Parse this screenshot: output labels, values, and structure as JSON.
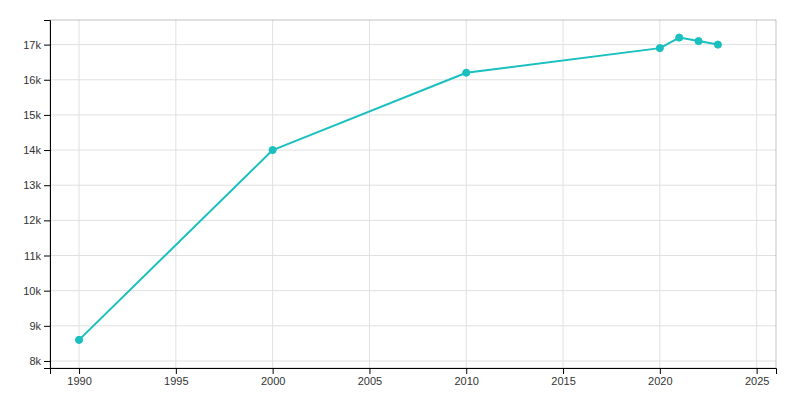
{
  "chart_data": {
    "type": "line",
    "x": [
      1990,
      2000,
      2010,
      2020,
      2021,
      2022,
      2023
    ],
    "values": [
      8600,
      14000,
      16200,
      16900,
      17200,
      17100,
      17000
    ],
    "color": "#1abfbf",
    "marker": "circle",
    "xlim": [
      1988.5,
      2026
    ],
    "ylim": [
      7800,
      17700
    ],
    "xticks": [
      1990,
      1995,
      2000,
      2005,
      2010,
      2015,
      2020,
      2025
    ],
    "yticks": [
      {
        "value": 8000,
        "label": "8k"
      },
      {
        "value": 9000,
        "label": "9k"
      },
      {
        "value": 10000,
        "label": "10k"
      },
      {
        "value": 11000,
        "label": "11k"
      },
      {
        "value": 12000,
        "label": "12k"
      },
      {
        "value": 13000,
        "label": "13k"
      },
      {
        "value": 14000,
        "label": "14k"
      },
      {
        "value": 15000,
        "label": "15k"
      },
      {
        "value": 16000,
        "label": "16k"
      },
      {
        "value": 17000,
        "label": "17k"
      }
    ],
    "grid": true
  }
}
